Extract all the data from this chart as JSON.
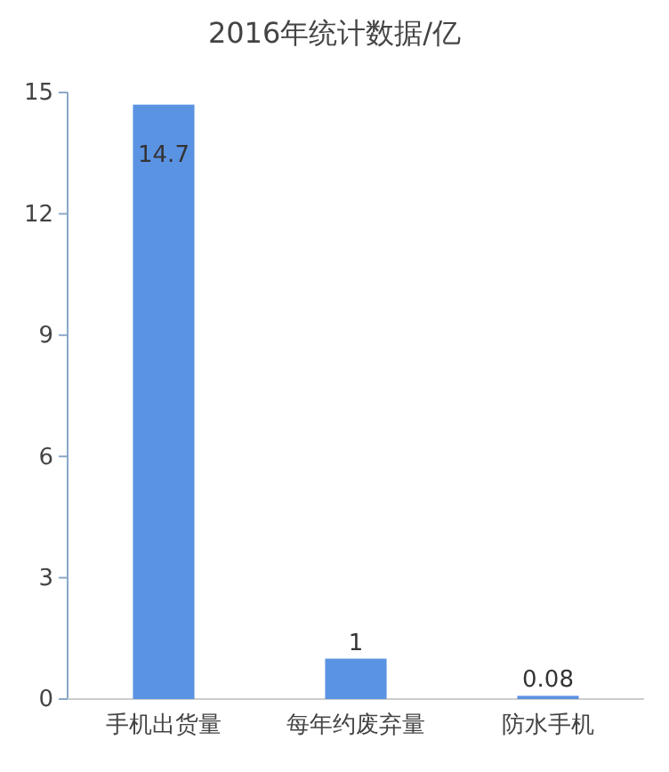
{
  "chart_data": {
    "type": "bar",
    "title": "2016年统计数据/亿",
    "categories": [
      "手机出货量",
      "每年约废弃量",
      "防水手机"
    ],
    "values": [
      14.7,
      1,
      0.08
    ],
    "color": "#5b93e3",
    "ylim": [
      0,
      15
    ],
    "yticks": [
      0,
      3,
      6,
      9,
      12,
      15
    ],
    "grid": false,
    "data_labels": true
  }
}
